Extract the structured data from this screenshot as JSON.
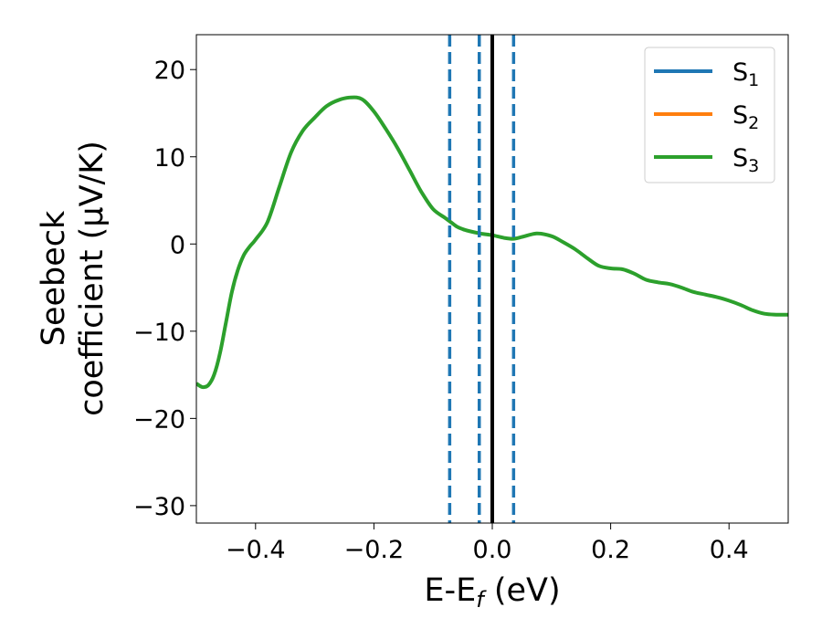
{
  "chart_data": {
    "type": "line",
    "xlabel": {
      "main": "E-E",
      "sub": "f",
      "tail": " (eV)"
    },
    "ylabel": {
      "line1": "Seebeck",
      "line2": "coefficient  (μV/K)"
    },
    "xlim": [
      -0.5,
      0.5
    ],
    "ylim": [
      -32,
      24
    ],
    "x_ticks": [
      -0.4,
      -0.2,
      0.0,
      0.2,
      0.4
    ],
    "x_tick_labels": [
      "−0.4",
      "−0.2",
      "0.0",
      "0.2",
      "0.4"
    ],
    "y_ticks": [
      -30,
      -20,
      -10,
      0,
      10,
      20
    ],
    "y_tick_labels": [
      "−30",
      "−20",
      "−10",
      "0",
      "10",
      "20"
    ],
    "legend_position": "top-right",
    "colors": {
      "s1": "#1f77b4",
      "s2": "#ff7f0e",
      "s3": "#2ca02c",
      "fermi": "#000000"
    },
    "series": [
      {
        "name": "S",
        "sub": "1",
        "color": "#1f77b4",
        "x": [],
        "y": []
      },
      {
        "name": "S",
        "sub": "2",
        "color": "#ff7f0e",
        "x": [],
        "y": []
      },
      {
        "name": "S",
        "sub": "3",
        "color": "#2ca02c",
        "x": [
          -0.5,
          -0.49,
          -0.48,
          -0.47,
          -0.46,
          -0.45,
          -0.44,
          -0.43,
          -0.42,
          -0.41,
          -0.4,
          -0.38,
          -0.36,
          -0.34,
          -0.32,
          -0.3,
          -0.28,
          -0.26,
          -0.24,
          -0.22,
          -0.2,
          -0.18,
          -0.16,
          -0.14,
          -0.12,
          -0.1,
          -0.08,
          -0.07,
          -0.06,
          -0.05,
          -0.04,
          -0.02,
          0.0,
          0.02,
          0.035,
          0.05,
          0.075,
          0.1,
          0.12,
          0.14,
          0.16,
          0.18,
          0.2,
          0.22,
          0.24,
          0.26,
          0.28,
          0.3,
          0.32,
          0.34,
          0.36,
          0.38,
          0.4,
          0.42,
          0.44,
          0.46,
          0.48,
          0.5
        ],
        "y": [
          -16,
          -16.4,
          -16.2,
          -15,
          -12.5,
          -9,
          -5.5,
          -3,
          -1.3,
          -0.3,
          0.5,
          2.5,
          6.5,
          10.5,
          13,
          14.5,
          15.8,
          16.5,
          16.8,
          16.6,
          15.2,
          13.2,
          11,
          8.5,
          6,
          4,
          3,
          2.5,
          2,
          1.7,
          1.5,
          1.2,
          1,
          0.7,
          0.6,
          0.8,
          1.2,
          0.9,
          0.2,
          -0.6,
          -1.6,
          -2.5,
          -2.8,
          -2.9,
          -3.4,
          -4.1,
          -4.4,
          -4.6,
          -5,
          -5.5,
          -5.8,
          -6.1,
          -6.5,
          -7,
          -7.6,
          -8,
          -8.1,
          -8.1
        ]
      }
    ],
    "vlines": [
      {
        "x": -0.072,
        "style": "dashed",
        "color": "#1f77b4"
      },
      {
        "x": -0.022,
        "style": "dashed",
        "color": "#1f77b4"
      },
      {
        "x": 0.0,
        "style": "solid",
        "color": "#000000"
      },
      {
        "x": 0.036,
        "style": "dashed",
        "color": "#1f77b4"
      }
    ]
  }
}
